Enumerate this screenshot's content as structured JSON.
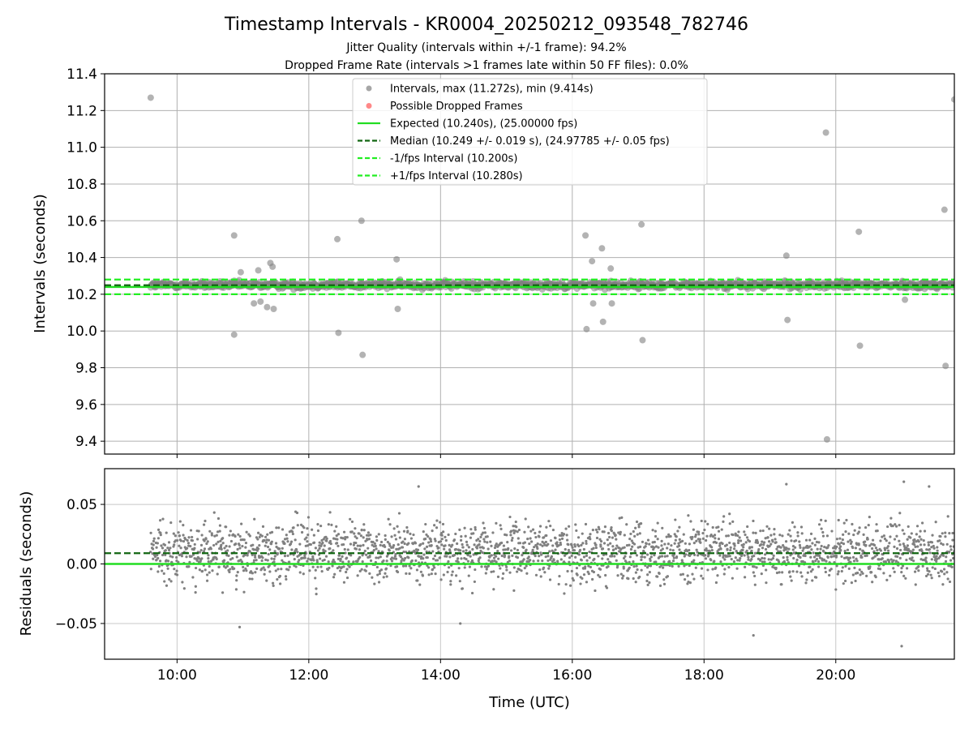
{
  "title": "Timestamp Intervals - KR0004_20250212_093548_782746",
  "subtitle_1": "Jitter Quality (intervals within +/-1 frame): 94.2%",
  "subtitle_2": "Dropped Frame Rate (intervals >1 frames late within 50 FF files): 0.0%",
  "colors": {
    "points": "#808080",
    "dropped": "#ff5555",
    "expected": "#22dd22",
    "median": "#116611",
    "bounds": "#22ee22"
  },
  "chart_data": [
    {
      "type": "scatter",
      "ylabel": "Intervals (seconds)",
      "xlim_hours": [
        8.9,
        21.8
      ],
      "ylim": [
        9.33,
        11.4
      ],
      "yticks": [
        9.4,
        9.6,
        9.8,
        10.0,
        10.2,
        10.4,
        10.6,
        10.8,
        11.0,
        11.2,
        11.4
      ],
      "ytick_labels": [
        "9.4",
        "9.6",
        "9.8",
        "10.0",
        "10.2",
        "10.4",
        "10.6",
        "10.8",
        "11.0",
        "11.2",
        "11.4"
      ],
      "grid": true,
      "legend_position": "top-center",
      "legend": [
        {
          "label": "Intervals, max (11.272s), min (9.414s)",
          "kind": "point",
          "color": "#808080"
        },
        {
          "label": "Possible Dropped Frames",
          "kind": "point",
          "color": "#ff5555"
        },
        {
          "label": "Expected (10.240s), (25.00000 fps)",
          "kind": "solid",
          "color": "#22dd22"
        },
        {
          "label": "Median (10.249 +/- 0.019 s), (24.97785 +/- 0.05 fps)",
          "kind": "dashed",
          "color": "#116611"
        },
        {
          "label": "-1/fps Interval (10.200s)",
          "kind": "dashed",
          "color": "#22ee22"
        },
        {
          "label": "+1/fps Interval (10.280s)",
          "kind": "dashed",
          "color": "#22ee22"
        }
      ],
      "reference_lines": {
        "expected": 10.24,
        "median": 10.249,
        "lower": 10.2,
        "upper": 10.28
      },
      "series": [
        {
          "name": "Intervals, max (11.272s), min (9.414s)",
          "band": {
            "x_start_hours": 9.6,
            "x_end_hours": 21.8,
            "center": 10.25,
            "spread": 0.025
          },
          "outliers": [
            {
              "x": "09:36",
              "y": 11.27
            },
            {
              "x": "10:52",
              "y": 10.52
            },
            {
              "x": "10:52",
              "y": 9.98
            },
            {
              "x": "10:58",
              "y": 10.32
            },
            {
              "x": "11:10",
              "y": 10.15
            },
            {
              "x": "11:14",
              "y": 10.33
            },
            {
              "x": "11:16",
              "y": 10.16
            },
            {
              "x": "11:22",
              "y": 10.13
            },
            {
              "x": "11:25",
              "y": 10.37
            },
            {
              "x": "11:27",
              "y": 10.35
            },
            {
              "x": "11:28",
              "y": 10.12
            },
            {
              "x": "12:26",
              "y": 10.5
            },
            {
              "x": "12:27",
              "y": 9.99
            },
            {
              "x": "12:48",
              "y": 10.6
            },
            {
              "x": "12:49",
              "y": 9.87
            },
            {
              "x": "13:20",
              "y": 10.39
            },
            {
              "x": "13:21",
              "y": 10.12
            },
            {
              "x": "16:12",
              "y": 10.52
            },
            {
              "x": "16:13",
              "y": 10.01
            },
            {
              "x": "16:18",
              "y": 10.38
            },
            {
              "x": "16:19",
              "y": 10.15
            },
            {
              "x": "16:27",
              "y": 10.45
            },
            {
              "x": "16:28",
              "y": 10.05
            },
            {
              "x": "16:35",
              "y": 10.34
            },
            {
              "x": "16:36",
              "y": 10.15
            },
            {
              "x": "17:03",
              "y": 10.58
            },
            {
              "x": "17:04",
              "y": 9.95
            },
            {
              "x": "19:15",
              "y": 10.41
            },
            {
              "x": "19:16",
              "y": 10.06
            },
            {
              "x": "19:51",
              "y": 11.08
            },
            {
              "x": "19:52",
              "y": 9.41
            },
            {
              "x": "20:21",
              "y": 10.54
            },
            {
              "x": "20:22",
              "y": 9.92
            },
            {
              "x": "21:03",
              "y": 10.17
            },
            {
              "x": "21:39",
              "y": 10.66
            },
            {
              "x": "21:40",
              "y": 9.81
            },
            {
              "x": "21:48",
              "y": 11.26
            }
          ]
        }
      ]
    },
    {
      "type": "scatter",
      "xlabel": "Time (UTC)",
      "ylabel": "Residuals (seconds)",
      "xlim_hours": [
        8.9,
        21.8
      ],
      "ylim": [
        -0.08,
        0.08
      ],
      "yticks": [
        -0.05,
        0.0,
        0.05
      ],
      "ytick_labels": [
        "−0.05",
        "0.00",
        "0.05"
      ],
      "xticks_hours": [
        10,
        12,
        14,
        16,
        18,
        20
      ],
      "xtick_labels": [
        "10:00",
        "12:00",
        "14:00",
        "16:00",
        "18:00",
        "20:00"
      ],
      "grid": true,
      "reference_lines": {
        "zero": 0.0,
        "median_offset": 0.009
      },
      "series": [
        {
          "name": "Residuals",
          "band": {
            "x_start_hours": 9.6,
            "x_end_hours": 21.8,
            "center": 0.01,
            "spread": 0.02
          },
          "outliers": [
            {
              "x": "10:57",
              "y": -0.053
            },
            {
              "x": "14:18",
              "y": -0.05
            },
            {
              "x": "13:40",
              "y": 0.065
            },
            {
              "x": "19:15",
              "y": 0.067
            },
            {
              "x": "21:00",
              "y": -0.069
            },
            {
              "x": "21:02",
              "y": 0.069
            },
            {
              "x": "18:45",
              "y": -0.06
            },
            {
              "x": "21:25",
              "y": 0.065
            }
          ]
        }
      ]
    }
  ]
}
